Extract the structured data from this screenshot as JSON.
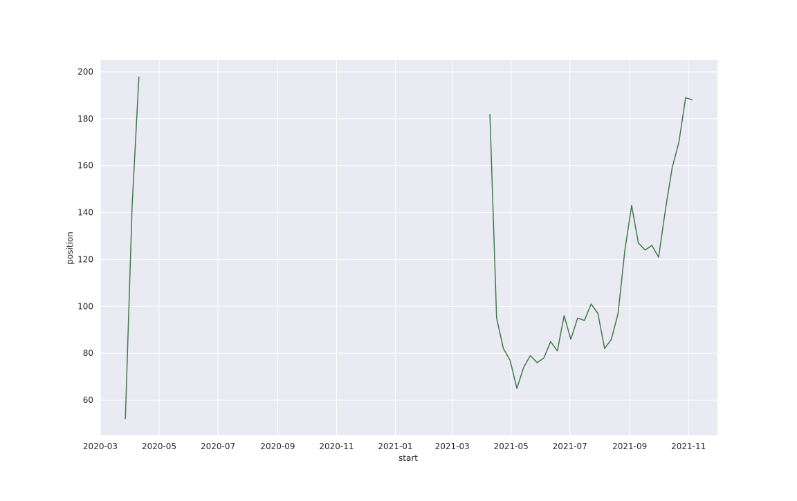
{
  "chart_data": {
    "type": "line",
    "xlabel": "start",
    "ylabel": "position",
    "x_axis_type": "date",
    "xlim": [
      "2020-03-01",
      "2021-12-01"
    ],
    "ylim": [
      45,
      205
    ],
    "x_ticks": [
      "2020-03",
      "2020-05",
      "2020-07",
      "2020-09",
      "2020-11",
      "2021-01",
      "2021-03",
      "2021-05",
      "2021-07",
      "2021-09",
      "2021-11"
    ],
    "y_ticks": [
      60,
      80,
      100,
      120,
      140,
      160,
      180,
      200
    ],
    "grid": true,
    "colors": {
      "line": "#3f7a4a",
      "plot_background": "#eaeaf2",
      "grid": "#ffffff",
      "text": "#262626"
    },
    "series": [
      {
        "segments": [
          [
            [
              "2020-03-27",
              52
            ],
            [
              "2020-04-03",
              143
            ],
            [
              "2020-04-10",
              198
            ]
          ],
          [
            [
              "2021-04-09",
              182
            ],
            [
              "2021-04-16",
              95
            ],
            [
              "2021-04-23",
              82
            ],
            [
              "2021-04-30",
              77
            ],
            [
              "2021-05-07",
              65
            ],
            [
              "2021-05-14",
              74
            ],
            [
              "2021-05-21",
              79
            ],
            [
              "2021-05-28",
              76
            ],
            [
              "2021-06-04",
              78
            ],
            [
              "2021-06-11",
              85
            ],
            [
              "2021-06-18",
              81
            ],
            [
              "2021-06-25",
              96
            ],
            [
              "2021-07-02",
              86
            ],
            [
              "2021-07-09",
              95
            ],
            [
              "2021-07-16",
              94
            ],
            [
              "2021-07-23",
              101
            ],
            [
              "2021-07-30",
              97
            ],
            [
              "2021-08-06",
              82
            ],
            [
              "2021-08-13",
              86
            ],
            [
              "2021-08-20",
              97
            ],
            [
              "2021-08-27",
              124
            ],
            [
              "2021-09-03",
              143
            ],
            [
              "2021-09-10",
              127
            ],
            [
              "2021-09-17",
              124
            ],
            [
              "2021-09-24",
              126
            ],
            [
              "2021-10-01",
              121
            ],
            [
              "2021-10-08",
              141
            ],
            [
              "2021-10-15",
              159
            ],
            [
              "2021-10-22",
              170
            ],
            [
              "2021-10-29",
              189
            ],
            [
              "2021-11-05",
              188
            ]
          ]
        ]
      }
    ]
  }
}
